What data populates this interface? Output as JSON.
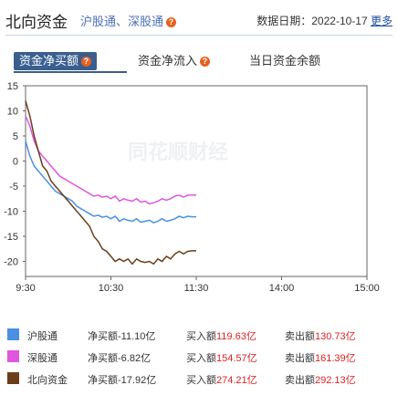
{
  "header": {
    "title": "北向资金",
    "subtitle": "沪股通、深股通",
    "date_label": "数据日期：2022-10-17",
    "more_label": "更多",
    "help_icon": "question-icon"
  },
  "tabs": [
    {
      "label": "资金净买额",
      "active": true,
      "help": true
    },
    {
      "label": "资金净流入",
      "active": false,
      "help": true
    },
    {
      "label": "当日资金余额",
      "active": false,
      "help": false
    }
  ],
  "colors": {
    "sh": "#4a90e2",
    "sz": "#e056e0",
    "north": "#6b3e1a",
    "axis": "#555555",
    "grid": "#dddddd",
    "tab_active": "#3a5f8f"
  },
  "watermark": "同花顺财经",
  "chart_data": {
    "type": "line",
    "x_ticks": [
      "9:30",
      "10:30",
      "11:30",
      "14:00",
      "15:00"
    ],
    "y_ticks": [
      15,
      10,
      5,
      0,
      -5,
      -10,
      -15,
      -20
    ],
    "ylim": [
      -23,
      15
    ],
    "xlim_minutes": [
      0,
      240
    ],
    "series": [
      {
        "name": "沪股通",
        "color": "#4a90e2",
        "x": [
          0,
          3,
          6,
          9,
          12,
          15,
          18,
          21,
          24,
          27,
          30,
          33,
          36,
          39,
          42,
          45,
          48,
          51,
          54,
          57,
          60,
          63,
          66,
          69,
          72,
          75,
          78,
          81,
          84,
          87,
          90,
          93,
          96,
          99,
          102,
          105,
          108,
          111,
          114,
          117,
          120
        ],
        "y": [
          4,
          1,
          -1,
          -2,
          -3,
          -4,
          -5,
          -6,
          -6.5,
          -7,
          -7.5,
          -8,
          -9,
          -9.5,
          -10,
          -10.5,
          -11,
          -10.8,
          -11.2,
          -11,
          -11.5,
          -11,
          -12,
          -11.5,
          -11.8,
          -12,
          -11.5,
          -12.2,
          -12,
          -11.8,
          -12.3,
          -12,
          -11.5,
          -12,
          -11.8,
          -11.5,
          -11,
          -11.3,
          -11,
          -11.1,
          -11.1
        ]
      },
      {
        "name": "深股通",
        "color": "#e056e0",
        "x": [
          0,
          3,
          6,
          9,
          12,
          15,
          18,
          21,
          24,
          27,
          30,
          33,
          36,
          39,
          42,
          45,
          48,
          51,
          54,
          57,
          60,
          63,
          66,
          69,
          72,
          75,
          78,
          81,
          84,
          87,
          90,
          93,
          96,
          99,
          102,
          105,
          108,
          111,
          114,
          117,
          120
        ],
        "y": [
          9,
          7,
          4,
          2,
          1,
          0,
          -1,
          -2,
          -3,
          -3.5,
          -4,
          -4.5,
          -5,
          -5.5,
          -6,
          -6.5,
          -7,
          -6.8,
          -7.2,
          -7,
          -7.5,
          -7,
          -8,
          -7.5,
          -7.8,
          -8,
          -7.5,
          -8.2,
          -8,
          -8.5,
          -8.3,
          -8,
          -7.5,
          -7.8,
          -7.5,
          -7,
          -6.8,
          -7.2,
          -6.8,
          -6.8,
          -6.8
        ]
      },
      {
        "name": "北向资金",
        "color": "#6b3e1a",
        "x": [
          0,
          3,
          6,
          9,
          12,
          15,
          18,
          21,
          24,
          27,
          30,
          33,
          36,
          39,
          42,
          45,
          48,
          51,
          54,
          57,
          60,
          63,
          66,
          69,
          72,
          75,
          78,
          81,
          84,
          87,
          90,
          93,
          96,
          99,
          102,
          105,
          108,
          111,
          114,
          117,
          120
        ],
        "y": [
          12,
          9,
          5,
          2,
          -1,
          -2,
          -4,
          -5,
          -6,
          -7,
          -8,
          -9,
          -10,
          -11,
          -12,
          -13,
          -15,
          -16,
          -17.5,
          -18,
          -19,
          -20,
          -19.5,
          -20,
          -19.5,
          -20.5,
          -19.5,
          -20,
          -20.2,
          -20,
          -20.5,
          -19.5,
          -20,
          -19,
          -19.5,
          -18.5,
          -18,
          -18.5,
          -18,
          -17.9,
          -17.9
        ]
      }
    ]
  },
  "legend": [
    {
      "name": "沪股通",
      "net": "净买额-11.10亿",
      "buy_label": "买入额",
      "buy": "119.63亿",
      "sell_label": "卖出额",
      "sell": "130.73亿"
    },
    {
      "name": "深股通",
      "net": "净买额-6.82亿",
      "buy_label": "买入额",
      "buy": "154.57亿",
      "sell_label": "卖出额",
      "sell": "161.39亿"
    },
    {
      "name": "北向资金",
      "net": "净买额-17.92亿",
      "buy_label": "买入额",
      "buy": "274.21亿",
      "sell_label": "卖出额",
      "sell": "292.13亿"
    }
  ]
}
